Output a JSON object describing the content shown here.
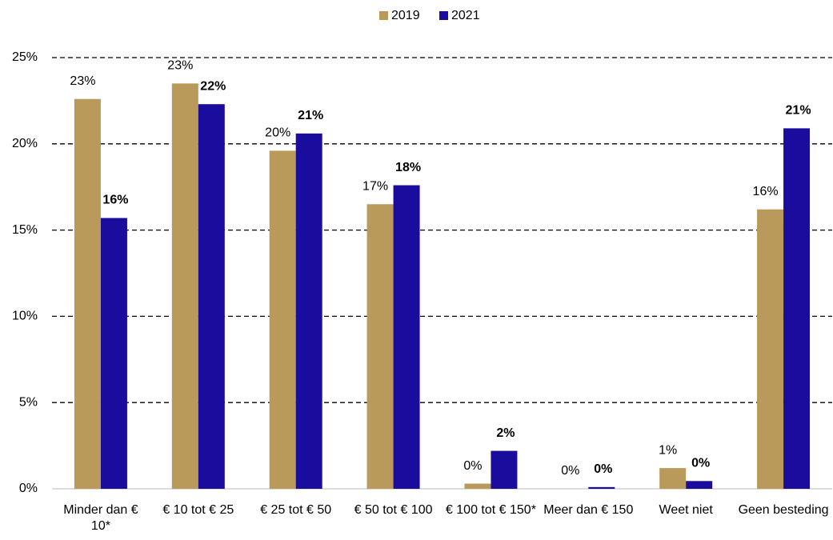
{
  "chart_data": {
    "type": "bar",
    "categories": [
      "Minder dan € 10*",
      "€ 10 tot € 25",
      "€ 25 tot € 50",
      "€ 50 tot € 100",
      "€ 100 tot € 150*",
      "Meer dan € 150",
      "Weet niet",
      "Geen besteding"
    ],
    "series": [
      {
        "name": "2019",
        "color": "#b99a5b",
        "values": [
          22.6,
          23.5,
          19.6,
          16.5,
          0.3,
          0,
          1.2,
          16.2
        ],
        "value_labels": [
          "23%",
          "23%",
          "20%",
          "17%",
          "0%",
          "0%",
          "1%",
          "16%"
        ]
      },
      {
        "name": "2021",
        "color": "#1a0c9c",
        "values": [
          15.7,
          22.3,
          20.6,
          17.6,
          2.2,
          0.1,
          0.45,
          20.9
        ],
        "value_labels": [
          "16%",
          "22%",
          "21%",
          "18%",
          "2%",
          "0%",
          "0%",
          "21%"
        ]
      }
    ],
    "ylim": [
      0,
      25
    ],
    "yticks": [
      {
        "value": 0,
        "label": "0%"
      },
      {
        "value": 5,
        "label": "5%"
      },
      {
        "value": 10,
        "label": "10%"
      },
      {
        "value": 15,
        "label": "15%"
      },
      {
        "value": 20,
        "label": "20%"
      },
      {
        "value": 25,
        "label": "25%"
      }
    ],
    "grid": true,
    "legend": "top"
  }
}
